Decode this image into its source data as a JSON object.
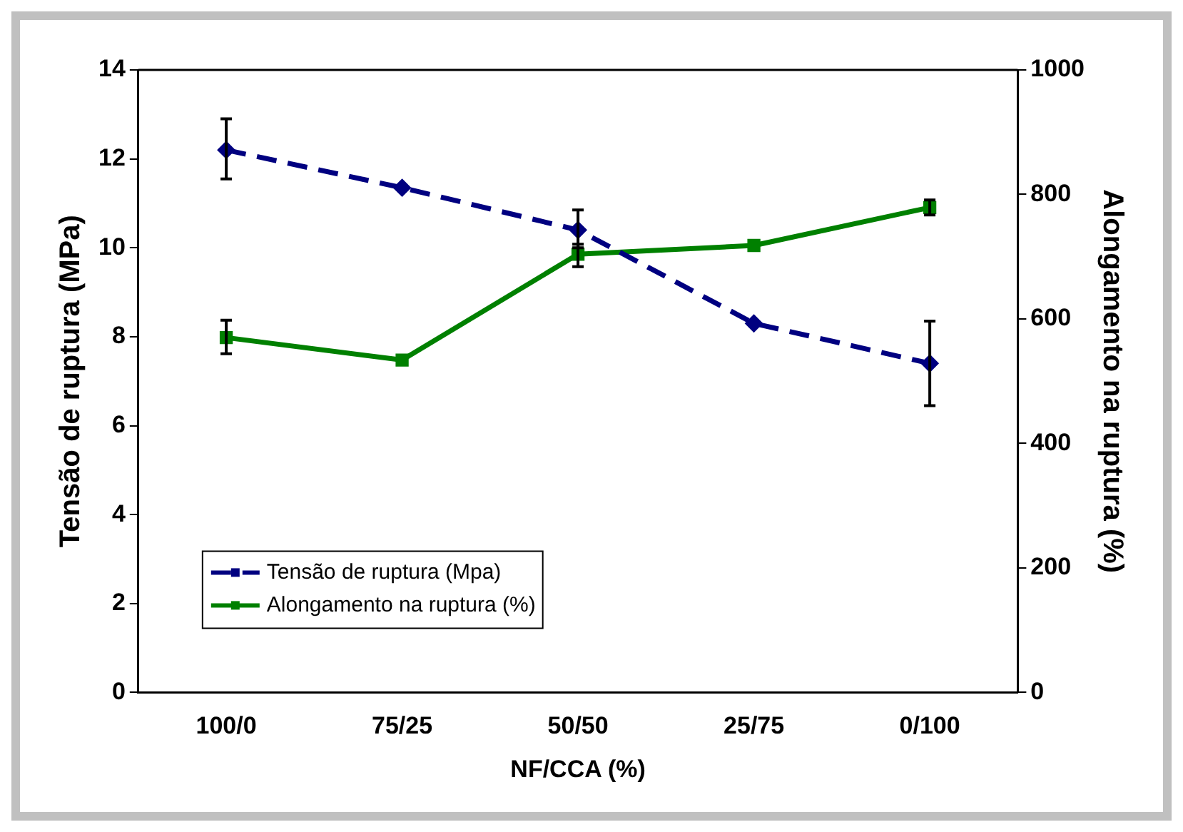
{
  "chart_data": {
    "type": "line",
    "xlabel": "NF/CCA (%)",
    "ylabel": "Tensão de ruptura (MPa)",
    "y2label": "Alongamento na ruptura (%)",
    "categories": [
      "100/0",
      "75/25",
      "50/50",
      "25/75",
      "0/100"
    ],
    "series": [
      {
        "name": "Tensão de ruptura (Mpa)",
        "color": "#000080",
        "values": [
          12.2,
          11.35,
          10.4,
          8.3,
          7.4
        ],
        "errors": [
          [
            11.55,
            12.9
          ],
          null,
          [
            10.0,
            10.85
          ],
          null,
          [
            6.45,
            8.35
          ]
        ],
        "marker": "diamond",
        "line_style": "dashed"
      },
      {
        "name": "Alongamento na ruptura (%)",
        "color": "#008000",
        "values": [
          570,
          534,
          704,
          718,
          779
        ],
        "errors": [
          [
            544,
            598
          ],
          null,
          [
            684,
            720
          ],
          null,
          [
            767,
            791
          ]
        ],
        "marker": "square",
        "line_style": "solid",
        "axis": "y2"
      }
    ],
    "ylim": [
      0,
      14
    ],
    "yticks": [
      0,
      2,
      4,
      6,
      8,
      10,
      12,
      14
    ],
    "y2lim": [
      0,
      1000
    ],
    "y2ticks": [
      0,
      200,
      400,
      600,
      800,
      1000
    ],
    "grid": false,
    "legend": "bottom left"
  }
}
